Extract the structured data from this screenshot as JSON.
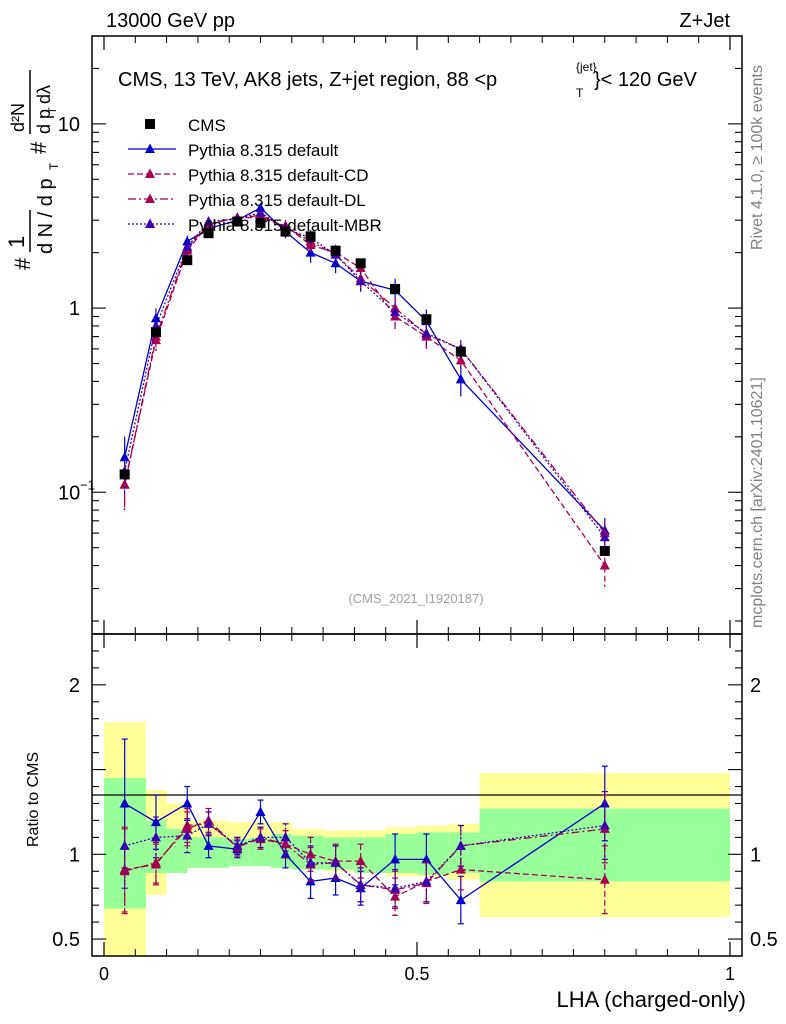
{
  "header": {
    "left": "13000 GeV pp",
    "right": "Z+Jet",
    "plot_title": "CMS, 13 TeV, AK8 jets, Z+jet region, 88 <p",
    "plot_title_sup": "{jet}",
    "plot_title_sub": "T",
    "plot_title_end": "}< 120 GeV",
    "side_rivet": "Rivet 4.1.0, ≥ 100k events",
    "side_mcplots": "mcplots.cern.ch [arXiv:2401.10621]",
    "analysis_id": "(CMS_2021_I1920187)"
  },
  "chart_data": {
    "type": "line",
    "xlabel": "LHA (charged-only)",
    "ylabel_main": "1/N dN/dλ",
    "ylabel_ratio": "Ratio to CMS",
    "x_range": [
      0,
      1
    ],
    "main_y_range": [
      0.017,
      30
    ],
    "main_y_scale": "log",
    "ratio_y_range": [
      0.4,
      2.3
    ],
    "x_ticks": [
      {
        "v": 0,
        "label": "0"
      },
      {
        "v": 0.5,
        "label": "0.5"
      },
      {
        "v": 1,
        "label": "1"
      }
    ],
    "main_y_ticks": [
      {
        "v": 0.1,
        "label": "10",
        "sup": "−1"
      },
      {
        "v": 1,
        "label": "1",
        "sup": ""
      },
      {
        "v": 10,
        "label": "10",
        "sup": ""
      }
    ],
    "ratio_y_ticks": [
      {
        "v": 0.5,
        "label": "0.5"
      },
      {
        "v": 1,
        "label": "1"
      },
      {
        "v": 2,
        "label": "2"
      }
    ],
    "bins": [
      [
        0,
        0.067
      ],
      [
        0.067,
        0.1
      ],
      [
        0.1,
        0.133
      ],
      [
        0.133,
        0.2
      ],
      [
        0.2,
        0.233
      ],
      [
        0.233,
        0.267
      ],
      [
        0.267,
        0.3
      ],
      [
        0.3,
        0.35
      ],
      [
        0.35,
        0.4
      ],
      [
        0.4,
        0.45
      ],
      [
        0.45,
        0.5
      ],
      [
        0.5,
        0.55
      ],
      [
        0.55,
        0.6
      ],
      [
        0.6,
        1.0
      ]
    ],
    "x": [
      0.033,
      0.083,
      0.133,
      0.167,
      0.213,
      0.25,
      0.29,
      0.33,
      0.37,
      0.41,
      0.465,
      0.515,
      0.57,
      0.8
    ],
    "data": {
      "name": "CMS",
      "values": [
        0.125,
        0.74,
        1.82,
        2.55,
        2.95,
        2.9,
        2.6,
        2.45,
        2.05,
        1.75,
        1.27,
        0.87,
        0.58,
        0.048
      ],
      "ratio_band_inner": [
        [
          0.68,
          1.45
        ],
        [
          0.89,
          1.2
        ],
        [
          0.89,
          1.15
        ],
        [
          0.92,
          1.1
        ],
        [
          0.93,
          1.09
        ],
        [
          0.93,
          1.1
        ],
        [
          0.92,
          1.12
        ],
        [
          0.91,
          1.11
        ],
        [
          0.91,
          1.1
        ],
        [
          0.89,
          1.1
        ],
        [
          0.89,
          1.12
        ],
        [
          0.88,
          1.13
        ],
        [
          0.89,
          1.13
        ],
        [
          0.84,
          1.27
        ]
      ],
      "ratio_band_outer": [
        [
          0.38,
          1.78
        ],
        [
          0.76,
          1.38
        ],
        [
          0.89,
          1.3
        ],
        [
          0.92,
          1.2
        ],
        [
          0.93,
          1.19
        ],
        [
          0.93,
          1.19
        ],
        [
          0.92,
          1.19
        ],
        [
          0.91,
          1.15
        ],
        [
          0.9,
          1.14
        ],
        [
          0.89,
          1.14
        ],
        [
          0.87,
          1.16
        ],
        [
          0.87,
          1.17
        ],
        [
          0.85,
          1.18
        ],
        [
          0.63,
          1.48
        ]
      ]
    },
    "series": [
      {
        "name": "Pythia 8.315 default",
        "color": "#0000cc",
        "style": "solid",
        "values": [
          0.155,
          0.88,
          2.3,
          2.7,
          3.0,
          3.5,
          2.6,
          2.0,
          1.75,
          1.4,
          1.25,
          0.85,
          0.41,
          0.062
        ],
        "ratio": [
          1.3,
          1.19,
          1.3,
          1.05,
          1.03,
          1.25,
          1.0,
          0.84,
          0.86,
          0.8,
          0.97,
          0.97,
          0.73,
          1.3
        ],
        "ratio_err": [
          0.38,
          0.16,
          0.1,
          0.07,
          0.05,
          0.07,
          0.08,
          0.1,
          0.1,
          0.1,
          0.15,
          0.15,
          0.14,
          0.22
        ]
      },
      {
        "name": "Pythia 8.315 default-CD",
        "color": "#a8004f",
        "style": "dashed",
        "values": [
          0.11,
          0.67,
          2.05,
          2.85,
          3.1,
          3.1,
          2.8,
          2.2,
          2.0,
          1.65,
          0.9,
          0.7,
          0.52,
          0.04
        ],
        "ratio": [
          0.91,
          0.94,
          1.17,
          1.18,
          1.05,
          1.09,
          1.06,
          1.0,
          0.96,
          0.96,
          0.75,
          0.84,
          0.91,
          0.85
        ],
        "ratio_err": [
          0.25,
          0.12,
          0.1,
          0.07,
          0.05,
          0.06,
          0.08,
          0.1,
          0.1,
          0.1,
          0.11,
          0.12,
          0.12,
          0.2
        ]
      },
      {
        "name": "Pythia 8.315 default-DL",
        "color": "#a8004f",
        "style": "dashdot",
        "values": [
          0.11,
          0.7,
          2.1,
          2.9,
          3.05,
          3.2,
          2.75,
          2.3,
          1.95,
          1.45,
          1.0,
          0.72,
          0.6,
          0.06
        ],
        "ratio": [
          0.9,
          0.95,
          1.15,
          1.2,
          1.04,
          1.1,
          1.06,
          0.94,
          0.95,
          0.82,
          0.79,
          0.83,
          1.05,
          1.15
        ],
        "ratio_err": [
          0.25,
          0.12,
          0.1,
          0.07,
          0.05,
          0.06,
          0.08,
          0.1,
          0.1,
          0.1,
          0.11,
          0.12,
          0.12,
          0.2
        ]
      },
      {
        "name": "Pythia 8.315 default-MBR",
        "color": "#3a00b0",
        "style": "dotted",
        "values": [
          0.13,
          0.8,
          2.15,
          2.95,
          3.05,
          3.3,
          2.7,
          2.4,
          1.95,
          1.4,
          0.95,
          0.73,
          0.6,
          0.057
        ],
        "ratio": [
          1.05,
          1.1,
          1.11,
          1.18,
          1.05,
          1.1,
          1.1,
          0.95,
          0.95,
          0.82,
          0.8,
          0.84,
          1.05,
          1.17
        ],
        "ratio_err": [
          0.25,
          0.12,
          0.1,
          0.07,
          0.05,
          0.06,
          0.08,
          0.1,
          0.1,
          0.1,
          0.11,
          0.12,
          0.12,
          0.2
        ]
      }
    ]
  }
}
